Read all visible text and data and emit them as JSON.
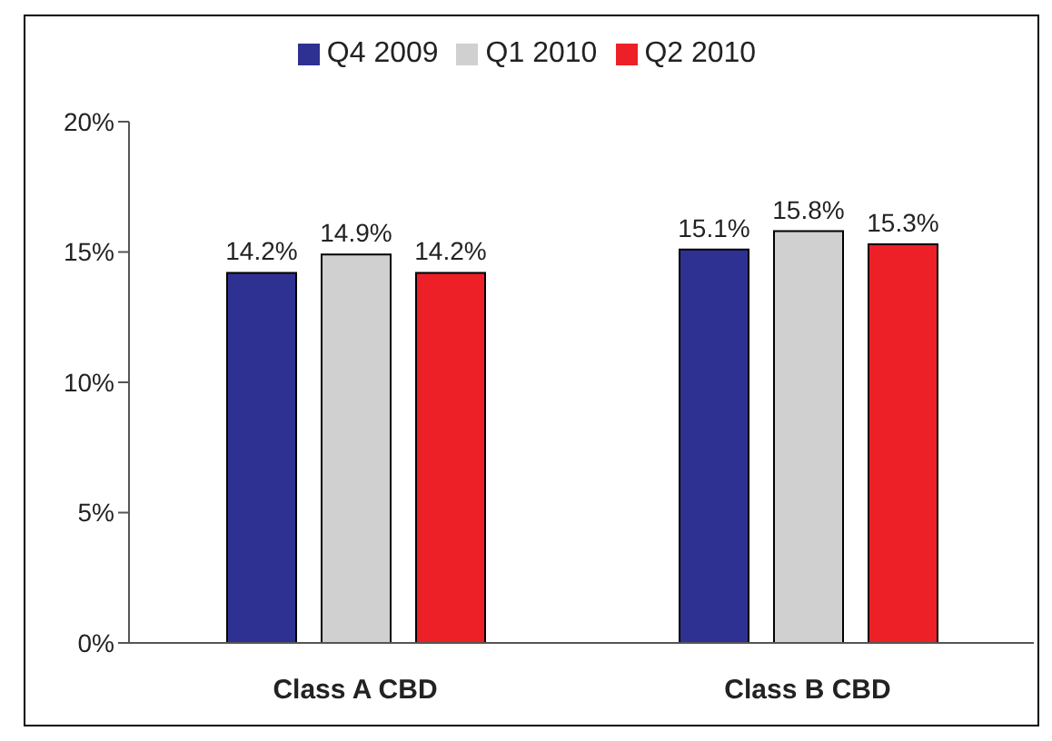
{
  "chart_data": {
    "type": "bar",
    "categories": [
      "Class A CBD",
      "Class B CBD"
    ],
    "series": [
      {
        "name": "Q4 2009",
        "color": "#2e3192",
        "values": [
          14.2,
          15.1
        ],
        "value_labels": [
          "14.2%",
          "15.1%"
        ]
      },
      {
        "name": "Q1 2010",
        "color": "#d0d0d0",
        "values": [
          14.9,
          15.8
        ],
        "value_labels": [
          "14.9%",
          "15.8%"
        ]
      },
      {
        "name": "Q2 2010",
        "color": "#ed2028",
        "values": [
          14.2,
          15.3
        ],
        "value_labels": [
          "14.2%",
          "15.3%"
        ]
      }
    ],
    "ylim": [
      0,
      20
    ],
    "yticks": [
      {
        "value": 0,
        "label": "0%"
      },
      {
        "value": 5,
        "label": "5%"
      },
      {
        "value": 10,
        "label": "10%"
      },
      {
        "value": 15,
        "label": "15%"
      },
      {
        "value": 20,
        "label": "20%"
      }
    ],
    "grid": false,
    "legend": "top"
  }
}
